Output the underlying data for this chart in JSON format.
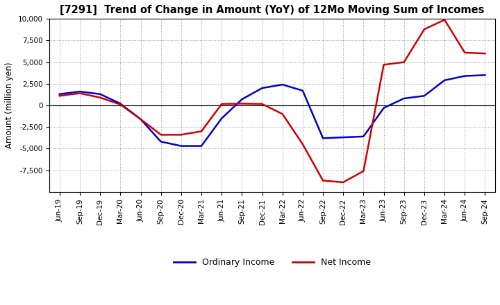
{
  "title": "[7291]  Trend of Change in Amount (YoY) of 12Mo Moving Sum of Incomes",
  "ylabel": "Amount (million yen)",
  "x_labels": [
    "Jun-19",
    "Sep-19",
    "Dec-19",
    "Mar-20",
    "Jun-20",
    "Sep-20",
    "Dec-20",
    "Mar-21",
    "Jun-21",
    "Sep-21",
    "Dec-21",
    "Mar-22",
    "Jun-22",
    "Sep-22",
    "Dec-22",
    "Mar-23",
    "Jun-23",
    "Sep-23",
    "Dec-23",
    "Mar-24",
    "Jun-24",
    "Sep-24"
  ],
  "ordinary_income": [
    1300,
    1600,
    1300,
    200,
    -1600,
    -4200,
    -4700,
    -4700,
    -1500,
    700,
    2000,
    2400,
    1700,
    -3800,
    -3700,
    -3600,
    -300,
    800,
    1100,
    2900,
    3400,
    3500
  ],
  "net_income": [
    1100,
    1400,
    900,
    100,
    -1600,
    -3400,
    -3400,
    -3000,
    150,
    200,
    150,
    -1000,
    -4500,
    -8700,
    -8900,
    -7600,
    4700,
    5000,
    8800,
    9900,
    6100,
    6000
  ],
  "ordinary_color": "#0000cc",
  "net_color": "#cc0000",
  "ylim": [
    -10000,
    10000
  ],
  "yticks": [
    -7500,
    -5000,
    -2500,
    0,
    2500,
    5000,
    7500,
    10000
  ],
  "bg_color": "#ffffff",
  "grid_color": "#888888",
  "legend_labels": [
    "Ordinary Income",
    "Net Income"
  ]
}
